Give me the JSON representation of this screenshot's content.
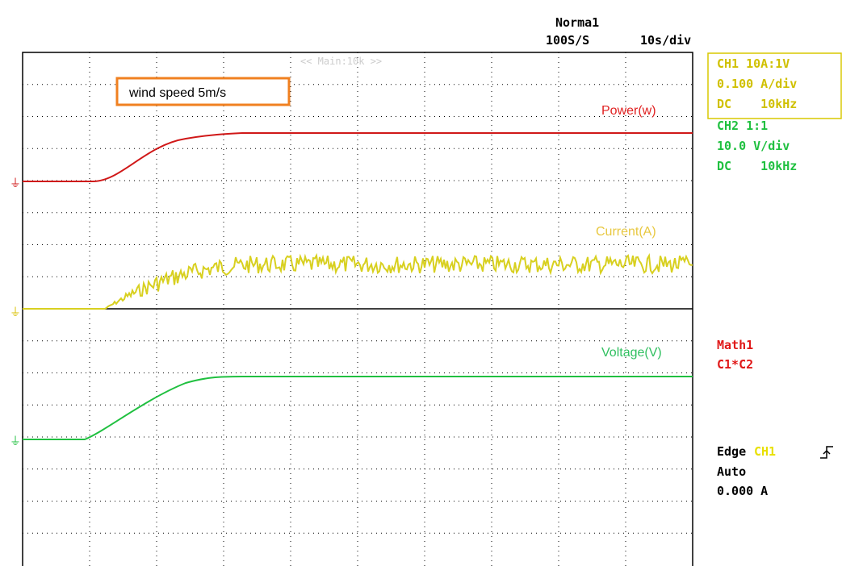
{
  "header": {
    "mode": "Norma1",
    "sample_rate": "100S/S",
    "timebase": "10s/div"
  },
  "screen": {
    "banner": "<< Main:10k >>",
    "annotation": "wind speed 5m/s",
    "trace_labels": [
      "Power(w)",
      "Current(A)",
      "Voltage(V)"
    ]
  },
  "channels": {
    "ch1": [
      "CH1 10A:1V",
      "0.100 A/div",
      "DC    10kHz"
    ],
    "ch2": [
      "CH2 1:1",
      "10.0 V/div",
      "DC    10kHz"
    ],
    "math": [
      "Math1",
      "C1*C2"
    ]
  },
  "trigger": {
    "type": "Edge",
    "source": "CH1",
    "mode": "Auto",
    "level": "0.000 A"
  }
}
